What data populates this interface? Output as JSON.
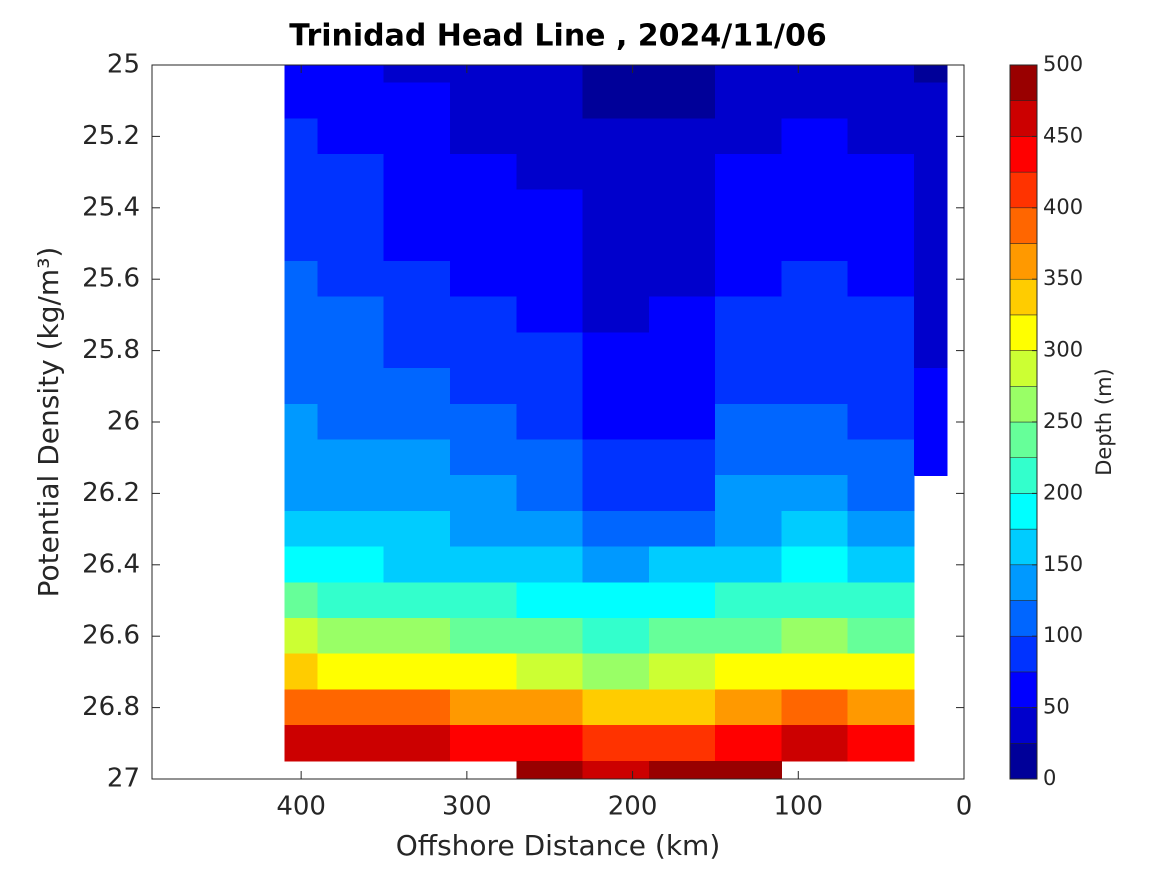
{
  "chart_data": {
    "type": "contour",
    "title": "Trinidad Head Line , 2024/11/06",
    "xlabel": "Offshore Distance (km)",
    "ylabel": "Potential Density (kg/m³)",
    "clabel": "Depth (m)",
    "colormap": "jet",
    "x": [
      410,
      370,
      330,
      290,
      250,
      210,
      170,
      130,
      90,
      50,
      10
    ],
    "y": [
      25.0,
      25.1,
      25.2,
      25.3,
      25.4,
      25.5,
      25.6,
      25.7,
      25.8,
      25.9,
      26.0,
      26.1,
      26.2,
      26.3,
      26.4,
      26.5,
      26.6,
      26.7,
      26.8,
      26.9,
      27.0
    ],
    "z": [
      [
        60,
        55,
        42,
        35,
        30,
        18,
        17,
        30,
        42,
        35,
        22
      ],
      [
        70,
        63,
        50,
        42,
        37,
        22,
        20,
        38,
        48,
        42,
        25
      ],
      [
        78,
        70,
        55,
        48,
        43,
        27,
        26,
        45,
        53,
        48,
        28
      ],
      [
        85,
        75,
        62,
        52,
        48,
        30,
        32,
        52,
        58,
        52,
        32
      ],
      [
        92,
        80,
        68,
        58,
        53,
        35,
        38,
        58,
        65,
        57,
        36
      ],
      [
        97,
        88,
        73,
        65,
        58,
        40,
        44,
        66,
        72,
        63,
        40
      ],
      [
        100,
        93,
        78,
        73,
        64,
        44,
        48,
        72,
        77,
        70,
        43
      ],
      [
        108,
        100,
        90,
        78,
        72,
        48,
        52,
        78,
        82,
        75,
        46
      ],
      [
        115,
        107,
        97,
        88,
        78,
        53,
        58,
        85,
        90,
        82,
        48
      ],
      [
        122,
        115,
        105,
        97,
        88,
        60,
        65,
        92,
        98,
        88,
        50
      ],
      [
        128,
        122,
        115,
        105,
        97,
        68,
        72,
        100,
        104,
        95,
        55
      ],
      [
        138,
        130,
        125,
        115,
        108,
        76,
        85,
        112,
        115,
        105,
        60
      ],
      [
        147,
        140,
        135,
        125,
        118,
        92,
        98,
        125,
        130,
        118,
        null
      ],
      [
        165,
        155,
        150,
        140,
        135,
        110,
        120,
        145,
        150,
        140,
        null
      ],
      [
        195,
        180,
        172,
        170,
        165,
        145,
        152,
        170,
        180,
        170,
        null
      ],
      [
        235,
        220,
        205,
        200,
        195,
        180,
        190,
        205,
        220,
        205,
        null
      ],
      [
        275,
        265,
        255,
        245,
        235,
        220,
        230,
        245,
        260,
        245,
        null
      ],
      [
        330,
        320,
        310,
        300,
        290,
        270,
        280,
        300,
        315,
        300,
        null
      ],
      [
        395,
        385,
        375,
        365,
        355,
        335,
        345,
        370,
        385,
        365,
        null
      ],
      [
        460,
        455,
        450,
        440,
        430,
        410,
        420,
        445,
        455,
        440,
        null
      ],
      [
        null,
        null,
        null,
        null,
        480,
        470,
        475,
        485,
        null,
        null,
        null
      ]
    ],
    "xlim": [
      490,
      0
    ],
    "ylim": [
      25,
      27
    ],
    "y_reversed": true,
    "xticks": [
      400,
      300,
      200,
      100,
      0
    ],
    "yticks": [
      25,
      25.2,
      25.4,
      25.6,
      25.8,
      26,
      26.2,
      26.4,
      26.6,
      26.8,
      27
    ],
    "clim": [
      0,
      500
    ],
    "cticks": [
      0,
      50,
      100,
      150,
      200,
      250,
      300,
      350,
      400,
      450,
      500
    ],
    "levels": [
      0,
      25,
      50,
      75,
      100,
      125,
      150,
      175,
      200,
      225,
      250,
      275,
      300,
      325,
      350,
      375,
      400,
      425,
      450,
      475,
      500
    ]
  }
}
